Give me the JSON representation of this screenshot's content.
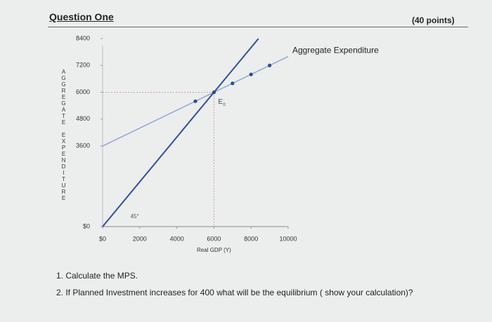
{
  "header": {
    "title": "Question One",
    "points": "(40 points)"
  },
  "chart": {
    "y_axis_label": "AGGREGATE EXPENDITURE",
    "x_axis_label": "Real GDP (Y)",
    "xlim": [
      0,
      10000
    ],
    "ylim": [
      0,
      8400
    ],
    "xticks": [
      {
        "value": 0,
        "label": "$0"
      },
      2000,
      4000,
      6000,
      8000,
      10000
    ],
    "yticks": [
      {
        "value": 0,
        "label": "$0"
      },
      3600,
      4800,
      6000,
      7200,
      8400
    ],
    "ae_line": {
      "name": "Aggregate Expenditure",
      "color": "#8ea6d6",
      "x": [
        0,
        10000
      ],
      "y": [
        3600,
        7600
      ]
    },
    "ae_points": {
      "color": "#2b4a9a",
      "x": [
        5000,
        6000,
        7000,
        8000,
        9000
      ],
      "y": [
        5600,
        6000,
        6400,
        6800,
        7200
      ]
    },
    "line_45": {
      "label": "45°",
      "color": "#2f4f9f",
      "x": [
        0,
        8400
      ],
      "y": [
        0,
        8400
      ]
    },
    "equilibrium": {
      "label": "E",
      "subscript": "0",
      "x": 6000,
      "y": 6000
    }
  },
  "questions": [
    "1. Calculate the MPS.",
    "2. If Planned Investment increases for 400 what will be the equilibrium ( show your calculation)?"
  ]
}
